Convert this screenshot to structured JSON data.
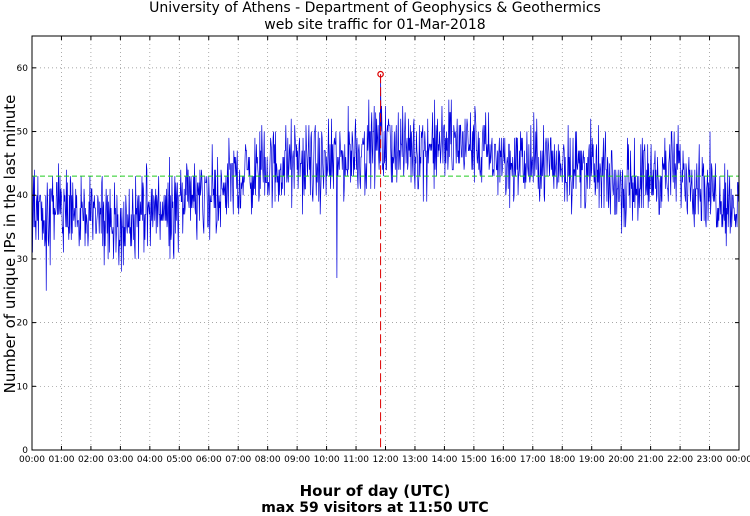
{
  "chart_data": {
    "type": "line",
    "title": "University of Athens - Department of Geophysics & Geothermics",
    "subtitle": "web site traffic for 01-Mar-2018",
    "xlabel": "Hour of day (UTC)",
    "ylabel": "Number of unique IPs in the last minute",
    "caption": "max 59 visitors at 11:50 UTC",
    "xlim": [
      0,
      24
    ],
    "ylim": [
      0,
      65
    ],
    "grid": true,
    "x_ticks": [
      "00:00",
      "01:00",
      "02:00",
      "03:00",
      "04:00",
      "05:00",
      "06:00",
      "07:00",
      "08:00",
      "09:00",
      "10:00",
      "11:00",
      "12:00",
      "13:00",
      "14:00",
      "15:00",
      "16:00",
      "17:00",
      "18:00",
      "19:00",
      "20:00",
      "21:00",
      "22:00",
      "23:00",
      "00:00"
    ],
    "y_ticks": [
      0,
      10,
      20,
      30,
      40,
      50,
      60
    ],
    "mean_line": 43,
    "max_point": {
      "time": "11:50",
      "hour": 11.833,
      "value": 59
    },
    "series": [
      {
        "resolution": "hourly profile (per-minute values approximated)",
        "hours": [
          0,
          1,
          2,
          3,
          4,
          5,
          6,
          7,
          8,
          9,
          10,
          11,
          12,
          13,
          14,
          15,
          16,
          17,
          18,
          19,
          20,
          21,
          22,
          23,
          24
        ],
        "values": [
          38,
          37,
          37,
          35,
          37,
          38,
          40,
          43,
          44,
          45,
          44,
          47,
          48,
          47,
          48,
          48,
          45,
          45,
          45,
          44,
          41,
          43,
          44,
          41,
          38
        ],
        "spread": 4,
        "minimum": {
          "hour": 10.35,
          "value": 27
        }
      }
    ],
    "colors": {
      "series": "#0000dd",
      "mean": "#22cc22",
      "max_marker": "#dd0000"
    }
  }
}
